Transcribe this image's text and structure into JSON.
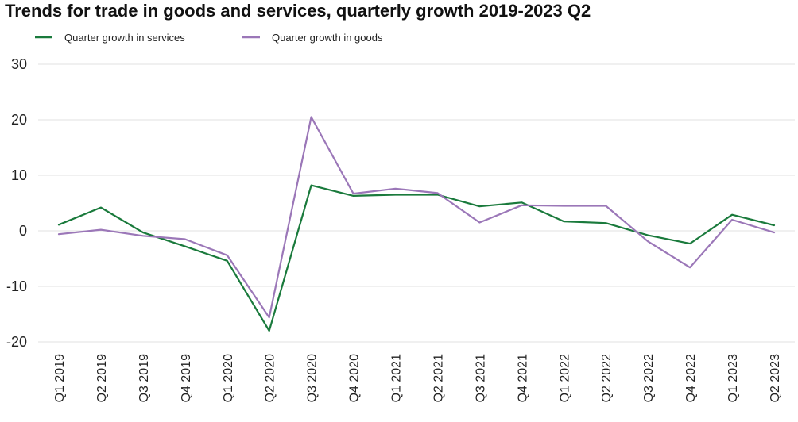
{
  "chart_data": {
    "type": "line",
    "title": "Trends for trade in goods and services, quarterly growth 2019-2023 Q2",
    "xlabel": "",
    "ylabel": "",
    "categories": [
      "Q1 2019",
      "Q2 2019",
      "Q3 2019",
      "Q4 2019",
      "Q1 2020",
      "Q2 2020",
      "Q3 2020",
      "Q4 2020",
      "Q1 2021",
      "Q2 2021",
      "Q3 2021",
      "Q4 2021",
      "Q1 2022",
      "Q2 2022",
      "Q3 2022",
      "Q4 2022",
      "Q1 2023",
      "Q2 2023"
    ],
    "ylim": [
      -20,
      30
    ],
    "yticks": [
      "30",
      "20",
      "10",
      "0",
      "-10",
      "-20"
    ],
    "ytick_values": [
      30,
      20,
      10,
      0,
      -10,
      -20
    ],
    "grid": true,
    "legend_position": "top-left",
    "series": [
      {
        "name": "Quarter growth in services",
        "color": "#1a7a3c",
        "values": [
          1.1,
          4.2,
          -0.3,
          -2.8,
          -5.4,
          -18.0,
          8.2,
          6.3,
          6.5,
          6.5,
          4.4,
          5.1,
          1.7,
          1.4,
          -0.8,
          -2.3,
          2.9,
          1.0
        ]
      },
      {
        "name": "Quarter growth in goods",
        "color": "#9b77b8",
        "values": [
          -0.6,
          0.2,
          -0.9,
          -1.5,
          -4.4,
          -15.6,
          20.5,
          6.7,
          7.6,
          6.8,
          1.5,
          4.6,
          4.5,
          4.5,
          -1.9,
          -6.6,
          2.0,
          -0.3
        ]
      }
    ]
  }
}
